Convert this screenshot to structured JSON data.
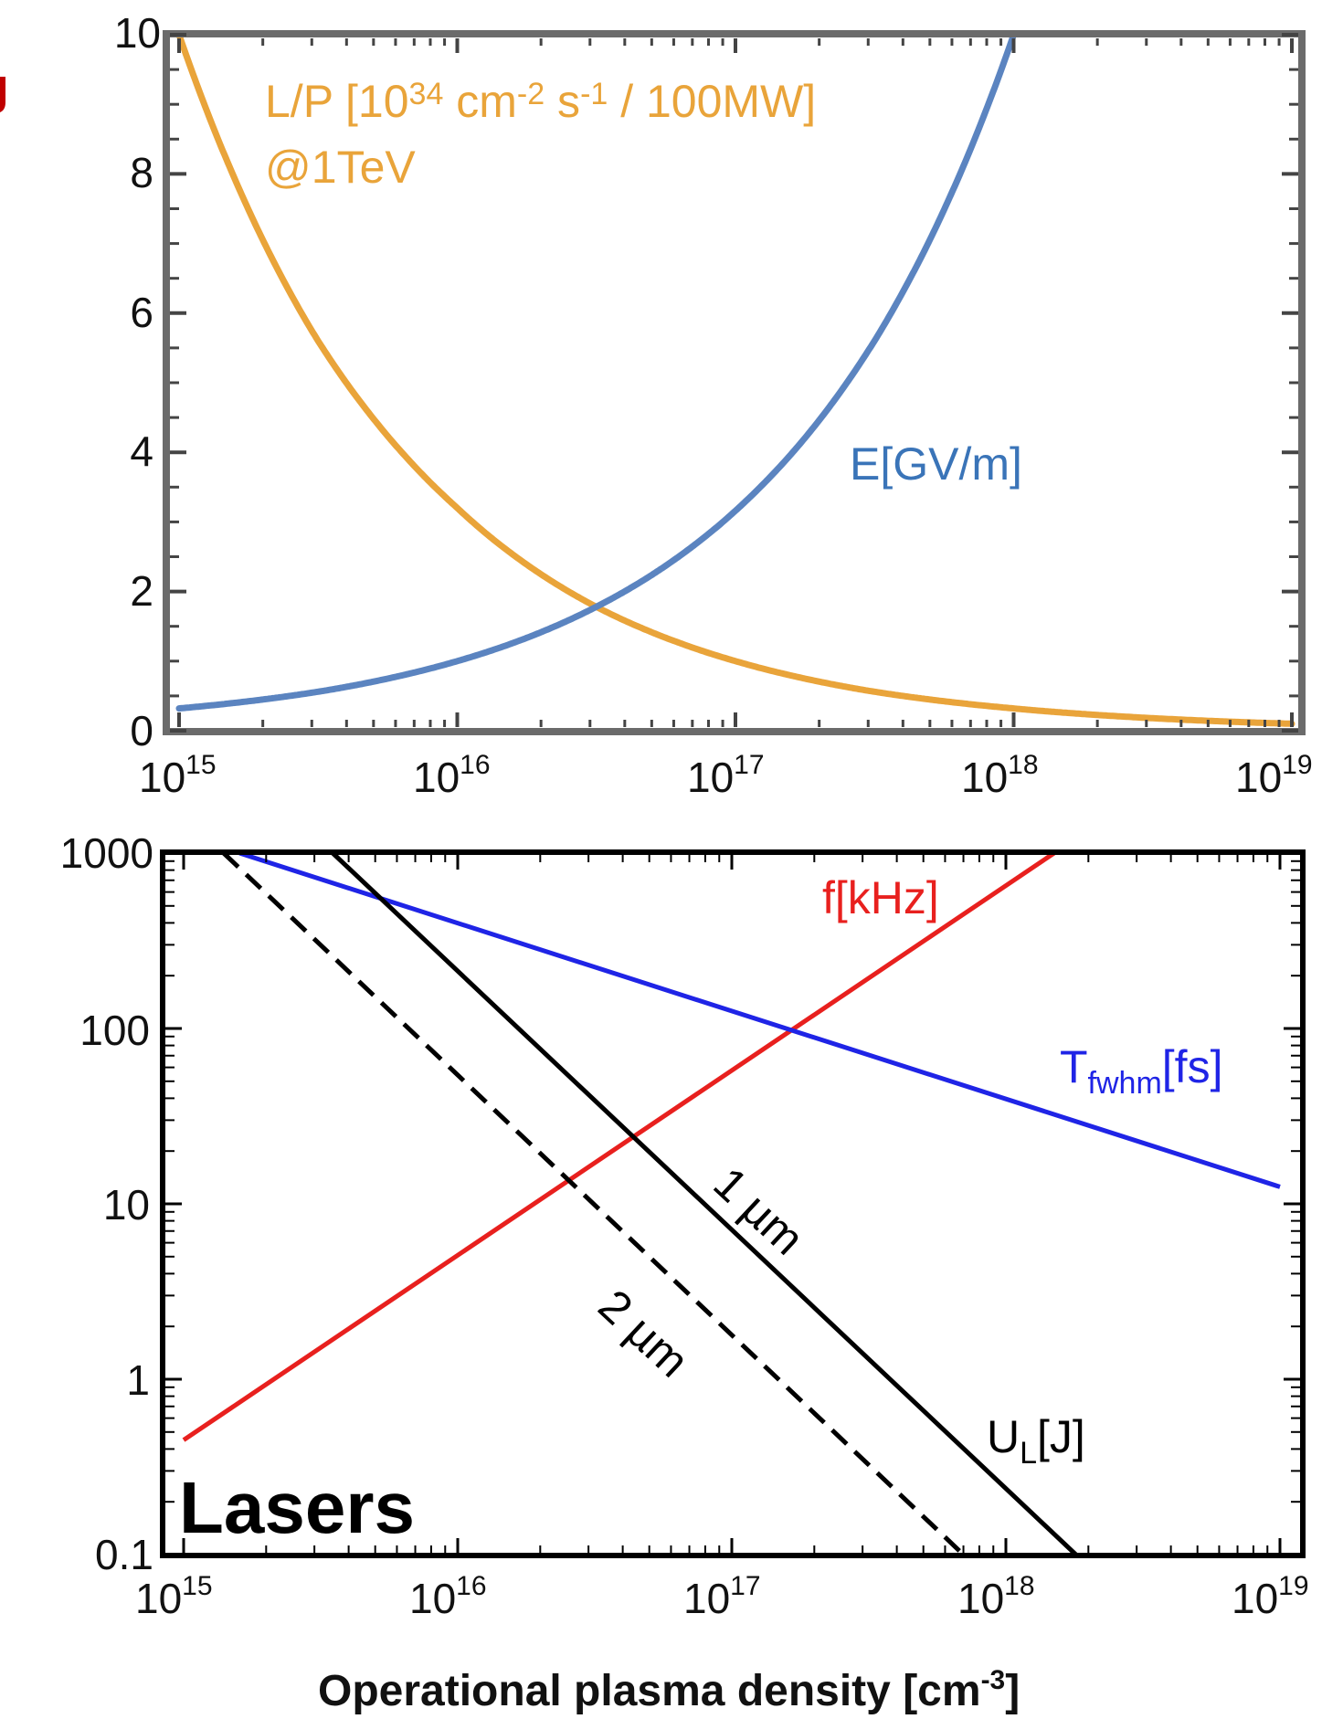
{
  "chart_data": [
    {
      "type": "line",
      "x_scale": "log",
      "xlim": [
        1000000000000000.0,
        1e+19
      ],
      "ylim": [
        0,
        10
      ],
      "x_ticks": [
        {
          "base": "10",
          "exp": "15"
        },
        {
          "base": "10",
          "exp": "16"
        },
        {
          "base": "10",
          "exp": "17"
        },
        {
          "base": "10",
          "exp": "18"
        },
        {
          "base": "10",
          "exp": "19"
        }
      ],
      "y_ticks": [
        "0",
        "2",
        "4",
        "6",
        "8",
        "10"
      ],
      "y_tick_values": [
        0,
        2,
        4,
        6,
        8,
        10
      ],
      "grid": false,
      "series": [
        {
          "name": "L/P [10^34 cm^-2 s^-1 / 100MW] @1TeV",
          "color": "#E9A43A",
          "x": [
            1000000000000000.0,
            3160000000000000.0,
            1e+16,
            3.16e+16,
            1e+17,
            3.16e+17,
            1e+18,
            3.16e+18,
            1e+19
          ],
          "y": [
            10.0,
            5.6,
            3.2,
            1.78,
            1.0,
            0.56,
            0.32,
            0.18,
            0.1
          ]
        },
        {
          "name": "E[GV/m]",
          "color": "#5B84C0",
          "x": [
            1000000000000000.0,
            3160000000000000.0,
            1e+16,
            3.16e+16,
            1e+17,
            3.16e+17,
            1e+18
          ],
          "y": [
            0.32,
            0.56,
            1.0,
            1.78,
            3.16,
            5.6,
            10.0
          ]
        }
      ],
      "annotations": {
        "lp_line1_a": "L/P [10",
        "lp_line1_sup1": "34",
        "lp_line1_b": " cm",
        "lp_line1_sup2": "-2",
        "lp_line1_c": " s",
        "lp_line1_sup3": "-1",
        "lp_line1_d": "  / 100MW]",
        "lp_line2": "@1TeV",
        "e_label": "E[GV/m]"
      }
    },
    {
      "type": "line",
      "x_scale": "log",
      "y_scale": "log",
      "xlim": [
        1000000000000000.0,
        1e+19
      ],
      "ylim": [
        0.1,
        1000
      ],
      "x_ticks": [
        {
          "base": "10",
          "exp": "15"
        },
        {
          "base": "10",
          "exp": "16"
        },
        {
          "base": "10",
          "exp": "17"
        },
        {
          "base": "10",
          "exp": "18"
        },
        {
          "base": "10",
          "exp": "19"
        }
      ],
      "y_ticks": [
        "0.1",
        "1",
        "10",
        "100",
        "1000"
      ],
      "y_tick_values": [
        0.1,
        1,
        10,
        100,
        1000
      ],
      "xlabel_main": "Operational plasma density [cm",
      "xlabel_sup": "-3",
      "xlabel_end": "]",
      "grid": false,
      "series": [
        {
          "name": "f[kHz]",
          "color": "#E8201E",
          "dash": false,
          "x": [
            1000000000000000.0,
            1.5e+18
          ],
          "y": [
            0.45,
            1000
          ]
        },
        {
          "name": "T_fwhm[fs]",
          "color": "#1F24E6",
          "dash": false,
          "x": [
            1600000000000000.0,
            1e+19
          ],
          "y": [
            1000,
            12.5
          ]
        },
        {
          "name": "U_L[J] 1 µm",
          "color": "#000000",
          "dash": false,
          "x": [
            3500000000000000.0,
            1.8e+18
          ],
          "y": [
            1000,
            0.1
          ]
        },
        {
          "name": "U_L[J] 2 µm",
          "color": "#000000",
          "dash": true,
          "x": [
            1400000000000000.0,
            7e+17
          ],
          "y": [
            1000,
            0.1
          ]
        }
      ],
      "annotations": {
        "f_label": "f[kHz]",
        "t_label_main": "T",
        "t_label_sub": "fwhm",
        "t_label_end": "[fs]",
        "ul_label_main": "U",
        "ul_label_sub": "L",
        "ul_label_end": "[J]",
        "one_um": "1 µm",
        "two_um": "2 µm",
        "lasers": "Lasers"
      }
    }
  ]
}
